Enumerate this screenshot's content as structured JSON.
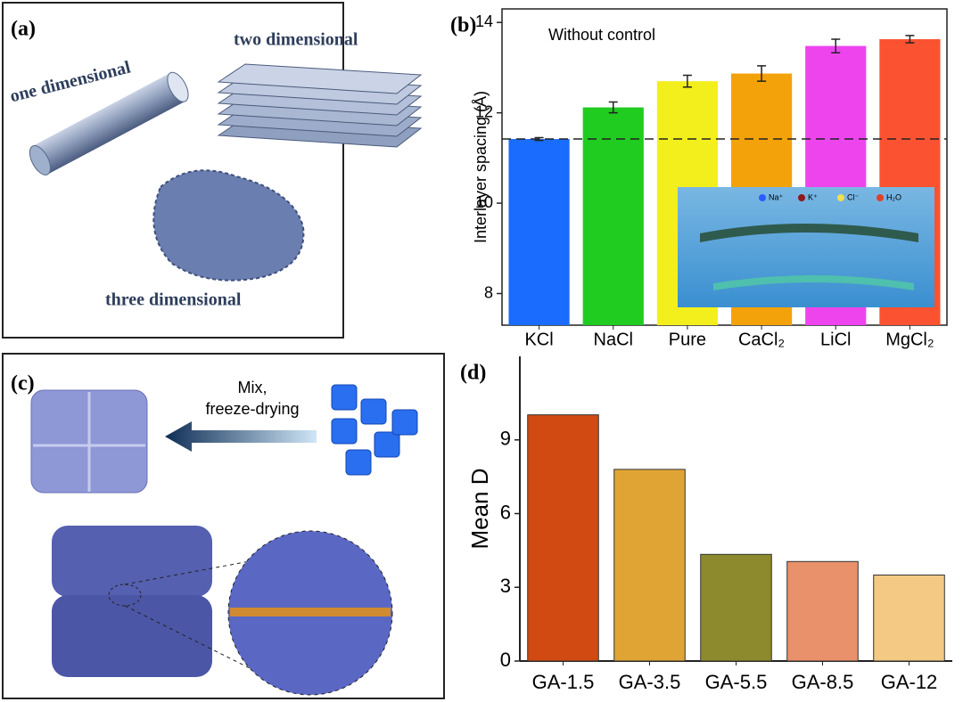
{
  "chart_data": [
    {
      "type": "bar",
      "panel_label": "(b)",
      "annotation": "Without control",
      "y_label": "Interlayer spacing (Å)",
      "categories": [
        "KCl",
        "NaCl",
        "Pure",
        "CaCl₂",
        "LiCl",
        "MgCl₂"
      ],
      "values": [
        11.42,
        12.12,
        12.7,
        12.87,
        13.48,
        13.63
      ],
      "errors": [
        0.03,
        0.12,
        0.13,
        0.17,
        0.15,
        0.08
      ],
      "colors": [
        "#1a6cff",
        "#1fcc1f",
        "#f3ef1c",
        "#f4a20a",
        "#ee44ee",
        "#fb5331"
      ],
      "reference_line": 11.42,
      "ylim": [
        7.3,
        14.3
      ],
      "yticks": [
        8,
        10,
        12,
        14
      ]
    },
    {
      "type": "bar",
      "panel_label": "(d)",
      "y_label": "Mean D",
      "categories": [
        "GA-1.5",
        "GA-3.5",
        "GA-5.5",
        "GA-8.5",
        "GA-12"
      ],
      "values": [
        10.02,
        7.8,
        4.34,
        4.05,
        3.5
      ],
      "colors": [
        "#d04a12",
        "#e0a434",
        "#8c8a2c",
        "#e8916a",
        "#f3c983"
      ],
      "ylim": [
        0,
        12.4
      ],
      "yticks": [
        0,
        3,
        6,
        9
      ]
    }
  ],
  "diagrams": {
    "panel_a": {
      "label": "(a)",
      "one": "one dimensional",
      "two": "two dimensional",
      "three": "three dimensional"
    },
    "panel_c": {
      "label": "(c)",
      "arrow_text": [
        "Mix,",
        "freeze-drying"
      ]
    },
    "inset_legend": [
      "Na⁺",
      "K⁺",
      "Cl⁻",
      "H₂O"
    ]
  }
}
